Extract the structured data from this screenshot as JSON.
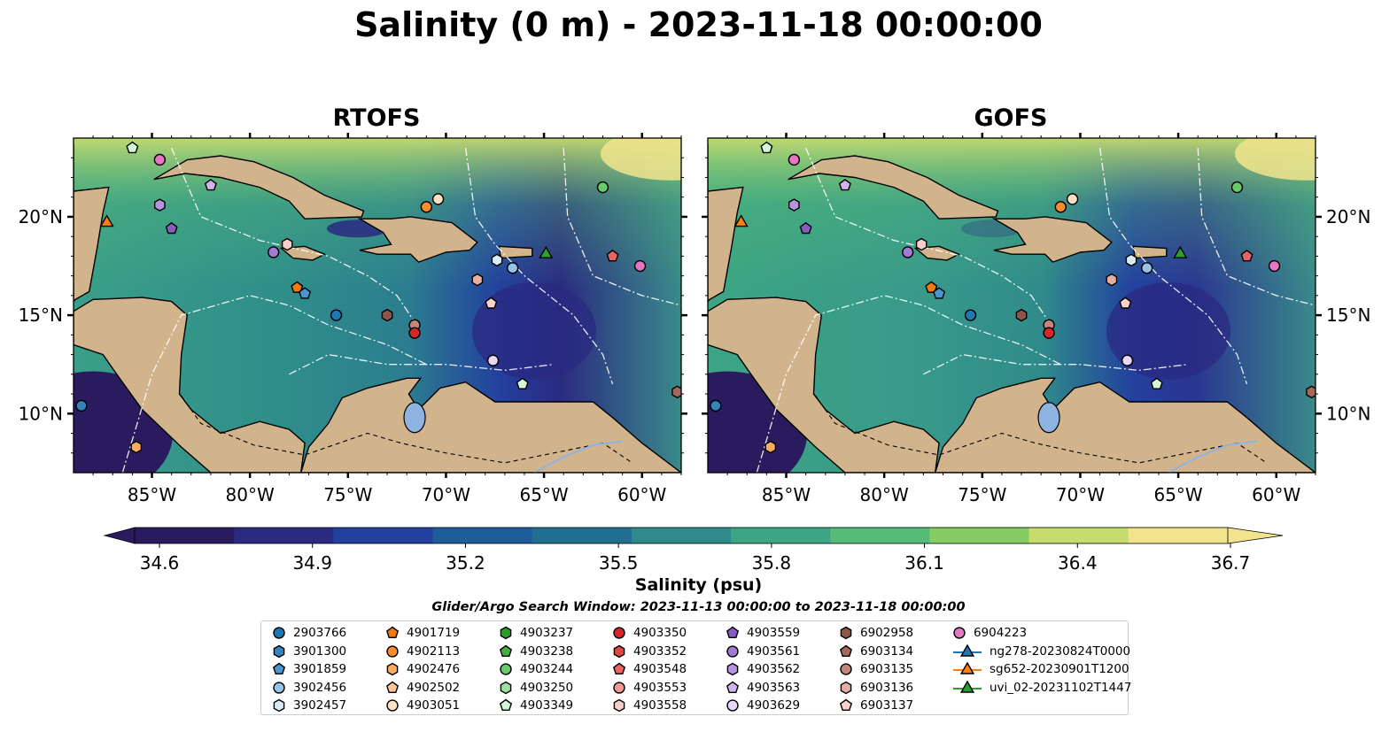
{
  "title": "Salinity (0 m) - 2023-11-18 00:00:00",
  "panels": [
    {
      "title": "RTOFS"
    },
    {
      "title": "GOFS"
    }
  ],
  "axes": {
    "lon_ticks": [
      "85°W",
      "80°W",
      "75°W",
      "70°W",
      "65°W",
      "60°W"
    ],
    "lat_ticks": [
      "20°N",
      "15°N",
      "10°N"
    ]
  },
  "colorbar": {
    "label": "Salinity (psu)",
    "min": 34.6,
    "max": 36.7,
    "ticks": [
      "34.6",
      "34.9",
      "35.2",
      "35.5",
      "35.8",
      "36.1",
      "36.4",
      "36.7"
    ],
    "colors": [
      "#2a1b5e",
      "#2a2a80",
      "#23409e",
      "#1f5c9a",
      "#216f90",
      "#2f8b8a",
      "#3da583",
      "#55bb76",
      "#85cd62",
      "#c6dc6f",
      "#f1e48d"
    ]
  },
  "search_window": "Glider/Argo Search Window: 2023-11-13 00:00:00 to 2023-11-18 00:00:00",
  "legend": {
    "columns": [
      [
        {
          "label": "2903766",
          "marker": "circle",
          "color": "#1f77b4"
        },
        {
          "label": "3901300",
          "marker": "hexagon",
          "color": "#3383bd"
        },
        {
          "label": "3901859",
          "marker": "pentagon",
          "color": "#4a95ce"
        },
        {
          "label": "3902456",
          "marker": "circle",
          "color": "#94c4e8"
        },
        {
          "label": "3902457",
          "marker": "hexagon",
          "color": "#d7ebf8"
        }
      ],
      [
        {
          "label": "4901719",
          "marker": "pentagon",
          "color": "#f07a12"
        },
        {
          "label": "4902113",
          "marker": "circle",
          "color": "#fb8c2b"
        },
        {
          "label": "4902476",
          "marker": "hexagon",
          "color": "#fdab5e"
        },
        {
          "label": "4902502",
          "marker": "pentagon",
          "color": "#fdc896"
        },
        {
          "label": "4903051",
          "marker": "circle",
          "color": "#fde2c5"
        }
      ],
      [
        {
          "label": "4903237",
          "marker": "hexagon",
          "color": "#2a9a2a"
        },
        {
          "label": "4903238",
          "marker": "pentagon",
          "color": "#44ae44"
        },
        {
          "label": "4903244",
          "marker": "circle",
          "color": "#6ac96a"
        },
        {
          "label": "4903250",
          "marker": "hexagon",
          "color": "#9fe09f"
        },
        {
          "label": "4903349",
          "marker": "pentagon",
          "color": "#d3f6d3"
        }
      ],
      [
        {
          "label": "4903350",
          "marker": "circle",
          "color": "#d62728"
        },
        {
          "label": "4903352",
          "marker": "hexagon",
          "color": "#df4747"
        },
        {
          "label": "4903548",
          "marker": "pentagon",
          "color": "#e86464"
        },
        {
          "label": "4903553",
          "marker": "circle",
          "color": "#ef9a90"
        },
        {
          "label": "4903558",
          "marker": "hexagon",
          "color": "#f7cfc8"
        }
      ],
      [
        {
          "label": "4903559",
          "marker": "pentagon",
          "color": "#8a5cc2"
        },
        {
          "label": "4903561",
          "marker": "circle",
          "color": "#a27ad0"
        },
        {
          "label": "4903562",
          "marker": "hexagon",
          "color": "#b795de"
        },
        {
          "label": "4903563",
          "marker": "pentagon",
          "color": "#d0b5ec"
        },
        {
          "label": "4903629",
          "marker": "circle",
          "color": "#ead6fb"
        }
      ],
      [
        {
          "label": "6902958",
          "marker": "hexagon",
          "color": "#8c564b"
        },
        {
          "label": "6903134",
          "marker": "pentagon",
          "color": "#a4685c"
        },
        {
          "label": "6903135",
          "marker": "circle",
          "color": "#c4877b"
        },
        {
          "label": "6903136",
          "marker": "hexagon",
          "color": "#e5aea3"
        },
        {
          "label": "6903137",
          "marker": "pentagon",
          "color": "#fbd3cc"
        }
      ],
      [
        {
          "label": "6904223",
          "marker": "circle",
          "color": "#e377c2"
        },
        {
          "label": "ng278-20230824T0000",
          "marker": "triangle",
          "color": "#1f77b4"
        },
        {
          "label": "sg652-20230901T1200",
          "marker": "triangle",
          "color": "#ff7f0e"
        },
        {
          "label": "uvi_02-20231102T1447",
          "marker": "triangle",
          "color": "#2ca02c"
        }
      ]
    ]
  },
  "floats": [
    {
      "lon": -86.0,
      "lat": 23.5,
      "marker": "pentagon",
      "color": "#d3f6d3"
    },
    {
      "lon": -84.6,
      "lat": 22.9,
      "marker": "circle",
      "color": "#e377c2"
    },
    {
      "lon": -84.6,
      "lat": 20.6,
      "marker": "hexagon",
      "color": "#b795de"
    },
    {
      "lon": -82.0,
      "lat": 21.6,
      "marker": "pentagon",
      "color": "#d0b5ec"
    },
    {
      "lon": -87.3,
      "lat": 19.7,
      "marker": "triangle",
      "color": "#ff7f0e"
    },
    {
      "lon": -84.0,
      "lat": 19.4,
      "marker": "pentagon",
      "color": "#8a5cc2"
    },
    {
      "lon": -78.8,
      "lat": 18.2,
      "marker": "circle",
      "color": "#a27ad0"
    },
    {
      "lon": -78.1,
      "lat": 18.6,
      "marker": "hexagon",
      "color": "#f7cfc8"
    },
    {
      "lon": -77.6,
      "lat": 16.4,
      "marker": "pentagon",
      "color": "#f07a12"
    },
    {
      "lon": -77.2,
      "lat": 16.1,
      "marker": "pentagon",
      "color": "#4a95ce"
    },
    {
      "lon": -75.6,
      "lat": 15.0,
      "marker": "circle",
      "color": "#1f77b4"
    },
    {
      "lon": -73.0,
      "lat": 15.0,
      "marker": "hexagon",
      "color": "#8c564b"
    },
    {
      "lon": -71.6,
      "lat": 14.5,
      "marker": "circle",
      "color": "#c4877b"
    },
    {
      "lon": -71.6,
      "lat": 14.1,
      "marker": "circle",
      "color": "#d62728"
    },
    {
      "lon": -71.0,
      "lat": 20.5,
      "marker": "circle",
      "color": "#fb8c2b"
    },
    {
      "lon": -70.4,
      "lat": 20.9,
      "marker": "circle",
      "color": "#fde2c5"
    },
    {
      "lon": -68.4,
      "lat": 16.8,
      "marker": "hexagon",
      "color": "#e5aea3"
    },
    {
      "lon": -67.7,
      "lat": 15.6,
      "marker": "pentagon",
      "color": "#fbd3cc"
    },
    {
      "lon": -67.4,
      "lat": 17.8,
      "marker": "hexagon",
      "color": "#d7ebf8"
    },
    {
      "lon": -66.6,
      "lat": 17.4,
      "marker": "circle",
      "color": "#94c4e8"
    },
    {
      "lon": -64.9,
      "lat": 18.1,
      "marker": "triangle",
      "color": "#2ca02c"
    },
    {
      "lon": -67.6,
      "lat": 12.7,
      "marker": "circle",
      "color": "#ead6fb"
    },
    {
      "lon": -66.1,
      "lat": 11.5,
      "marker": "pentagon",
      "color": "#d3f6d3"
    },
    {
      "lon": -62.0,
      "lat": 21.5,
      "marker": "circle",
      "color": "#6ac96a"
    },
    {
      "lon": -61.5,
      "lat": 18.0,
      "marker": "pentagon",
      "color": "#e86464"
    },
    {
      "lon": -60.1,
      "lat": 17.5,
      "marker": "circle",
      "color": "#e377c2"
    },
    {
      "lon": -58.2,
      "lat": 11.1,
      "marker": "hexagon",
      "color": "#a4685c"
    },
    {
      "lon": -88.6,
      "lat": 10.4,
      "marker": "circle",
      "color": "#3383bd"
    },
    {
      "lon": -85.8,
      "lat": 8.3,
      "marker": "hexagon",
      "color": "#fdab5e"
    }
  ]
}
